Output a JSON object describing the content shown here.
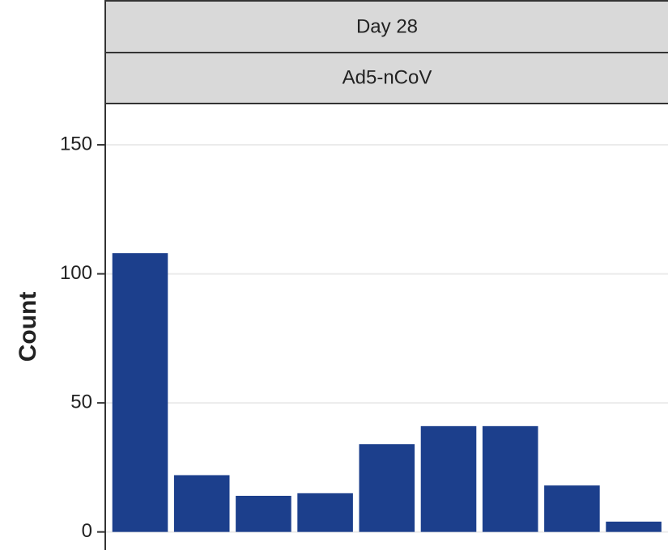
{
  "chart_data": {
    "type": "bar",
    "strips": [
      "Day 28",
      "Ad5-nCoV"
    ],
    "ylabel": "Count",
    "categories": [
      null,
      null,
      null,
      null,
      null,
      null,
      null,
      null,
      null
    ],
    "values": [
      108,
      22,
      14,
      15,
      34,
      41,
      41,
      18,
      4
    ],
    "color": "#1c3f8c",
    "ylim": [
      -7,
      166
    ],
    "yticks": [
      0,
      50,
      100,
      150
    ],
    "grid": true
  }
}
